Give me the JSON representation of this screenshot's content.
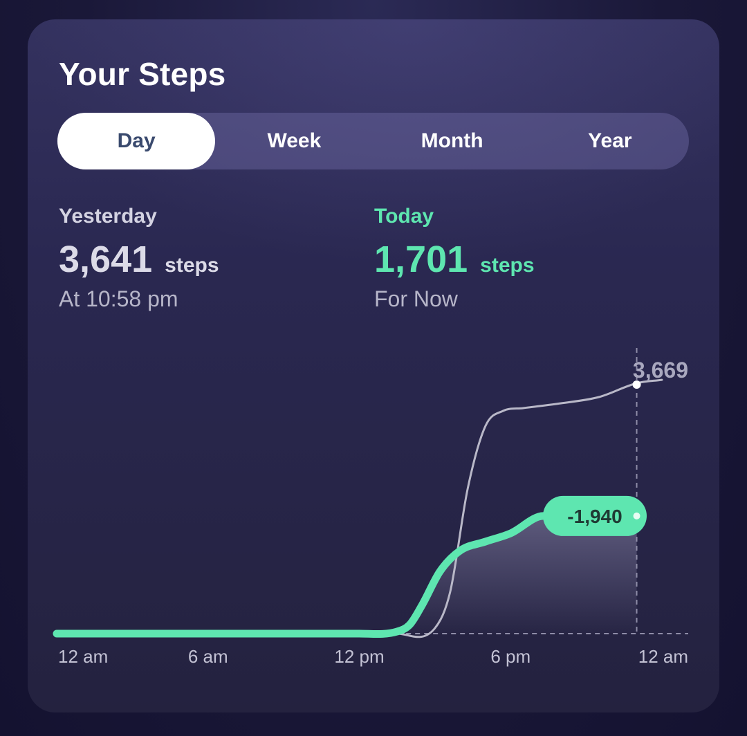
{
  "header": {
    "title": "Your Steps"
  },
  "tabs": [
    {
      "label": "Day",
      "active": true
    },
    {
      "label": "Week",
      "active": false
    },
    {
      "label": "Month",
      "active": false
    },
    {
      "label": "Year",
      "active": false
    }
  ],
  "yesterday": {
    "label": "Yesterday",
    "value": "3,641",
    "unit": "steps",
    "sub": "At 10:58 pm"
  },
  "today": {
    "label": "Today",
    "value": "1,701",
    "unit": "steps",
    "sub": "For Now"
  },
  "colors": {
    "accent": "#5ee6b0",
    "yesterday_line": "#b9b8c8",
    "card": "#2a2851"
  },
  "chart_data": {
    "type": "line",
    "x_tick_labels": [
      "12 am",
      "6 am",
      "12 pm",
      "6 pm",
      "12 am"
    ],
    "x_unit": "hours",
    "xlim": [
      0,
      24
    ],
    "ylim": [
      0,
      4000
    ],
    "series": [
      {
        "name": "Yesterday",
        "x": [
          0,
          12,
          13.5,
          15,
          15.6,
          16.3,
          17,
          17.7,
          18.5,
          20,
          21.5,
          23,
          24
        ],
        "y": [
          0,
          0,
          0,
          80,
          600,
          2100,
          3000,
          3220,
          3260,
          3330,
          3420,
          3620,
          3669
        ]
      },
      {
        "name": "Today",
        "x": [
          0,
          12,
          13.5,
          14,
          14.5,
          15.2,
          16,
          17,
          18,
          19.3,
          23
        ],
        "y": [
          0,
          0,
          30,
          130,
          420,
          900,
          1200,
          1330,
          1450,
          1701,
          1701
        ]
      }
    ],
    "annotations": {
      "yesterday_end_value": "3,669",
      "difference": "-1,940"
    }
  }
}
